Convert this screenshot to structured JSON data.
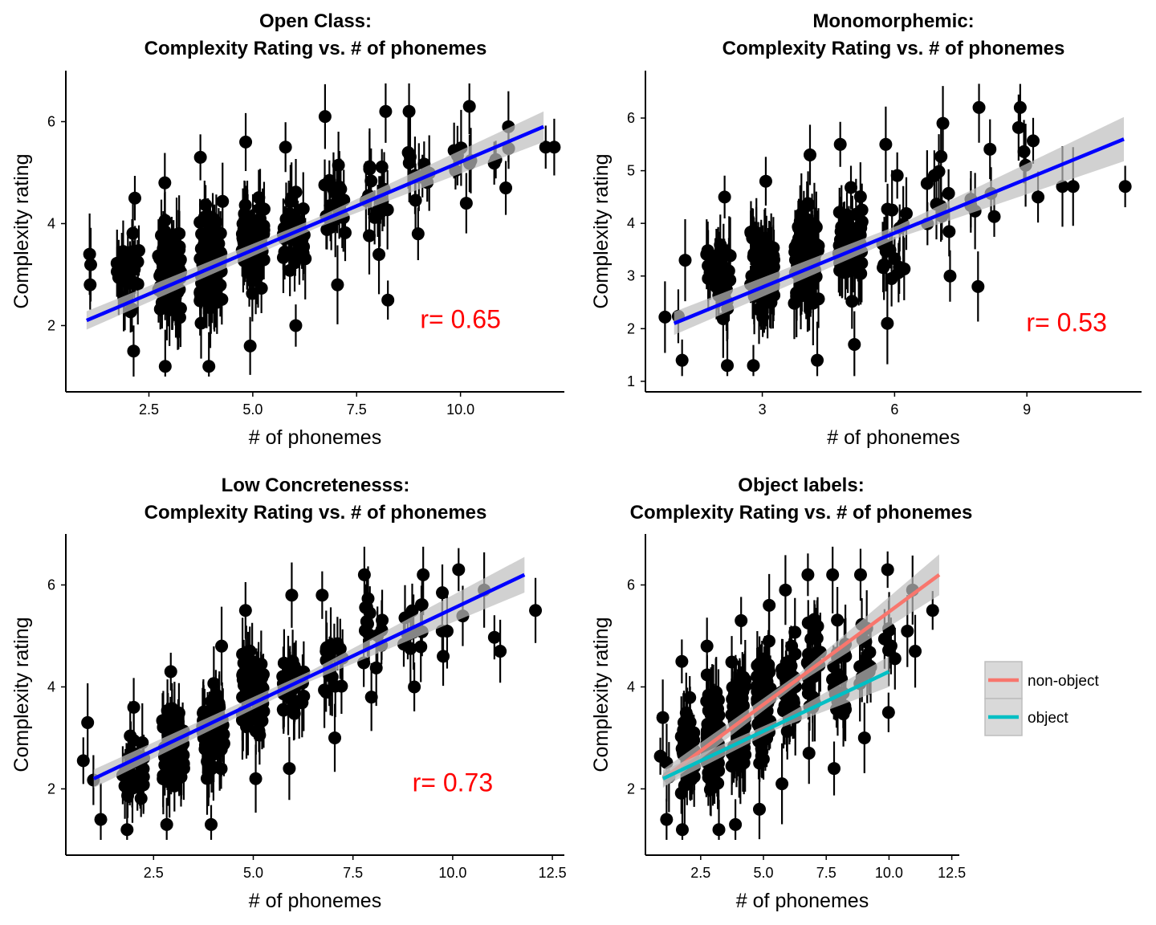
{
  "colors": {
    "points": "#000000",
    "fit": "#0000ff",
    "band": "#bdbdbd",
    "annotation": "#ff0000",
    "non_object": "#f8766d",
    "object": "#00bfc4"
  },
  "chart_data": [
    {
      "type": "scatter",
      "title_line1": "Open Class:",
      "title_line2": "Complexity Rating vs. # of phonemes",
      "xlabel": "# of phonemes",
      "ylabel": "Complexity rating",
      "xlim": [
        0.5,
        12.5
      ],
      "ylim": [
        0.7,
        7.0
      ],
      "xticks": [
        2.5,
        5.0,
        7.5,
        10.0
      ],
      "xtick_labels": [
        "2.5",
        "5.0",
        "7.5",
        "10.0"
      ],
      "yticks": [
        2,
        4,
        6
      ],
      "ytick_labels": [
        "2",
        "4",
        "6"
      ],
      "annotation": "r= 0.65",
      "annotation_pos": [
        10.0,
        1.95
      ],
      "points_x": [
        1,
        2,
        3,
        4,
        5,
        6,
        7,
        8,
        9,
        10,
        11,
        12
      ],
      "points_count": [
        3,
        30,
        90,
        95,
        75,
        35,
        22,
        18,
        12,
        8,
        5,
        2
      ],
      "points_ymin": [
        2.8,
        1.5,
        1.2,
        1.2,
        1.6,
        2.0,
        2.8,
        2.5,
        3.8,
        4.4,
        4.7,
        5.5
      ],
      "points_ymax": [
        3.4,
        4.5,
        4.8,
        5.3,
        5.6,
        5.5,
        6.1,
        6.2,
        6.2,
        6.3,
        5.9,
        5.5
      ],
      "fit_series": [
        {
          "x": [
            1,
            12
          ],
          "y": [
            2.1,
            5.9
          ],
          "band_halfwidth": [
            0.18,
            0.3
          ],
          "color": "#0000ff"
        }
      ]
    },
    {
      "type": "scatter",
      "title_line1": "Monomorphemic:",
      "title_line2": "Complexity Rating vs. # of phonemes",
      "xlabel": "# of phonemes",
      "ylabel": "Complexity rating",
      "xlim": [
        0.35,
        11.6
      ],
      "ylim": [
        0.8,
        6.9
      ],
      "xticks": [
        3,
        6,
        9
      ],
      "xtick_labels": [
        "3",
        "6",
        "9"
      ],
      "yticks": [
        1,
        2,
        3,
        4,
        5,
        6
      ],
      "ytick_labels": [
        "1",
        "2",
        "3",
        "4",
        "5",
        "6"
      ],
      "annotation": "r= 0.53",
      "annotation_pos": [
        9.9,
        1.95
      ],
      "points_x": [
        1,
        2,
        3,
        4,
        5,
        6,
        7,
        8,
        9,
        10,
        11
      ],
      "points_count": [
        4,
        35,
        90,
        80,
        55,
        20,
        12,
        8,
        6,
        2,
        1
      ],
      "points_ymin": [
        1.4,
        1.3,
        1.3,
        1.4,
        1.7,
        2.1,
        3.0,
        2.8,
        4.5,
        4.7,
        4.7
      ],
      "points_ymax": [
        3.3,
        4.5,
        4.8,
        5.3,
        5.5,
        5.5,
        5.9,
        6.2,
        6.2,
        4.7,
        4.7
      ],
      "fit_series": [
        {
          "x": [
            1,
            11.2
          ],
          "y": [
            2.1,
            5.6
          ],
          "band_halfwidth": [
            0.22,
            0.42
          ],
          "color": "#0000ff"
        }
      ]
    },
    {
      "type": "scatter",
      "title_line1": "Low Concretenesss:",
      "title_line2": "Complexity Rating vs. # of phonemes",
      "xlabel": "# of phonemes",
      "ylabel": "Complexity rating",
      "xlim": [
        0.3,
        12.8
      ],
      "ylim": [
        0.7,
        7.0
      ],
      "xticks": [
        2.5,
        5.0,
        7.5,
        10.0,
        12.5
      ],
      "xtick_labels": [
        "2.5",
        "5.0",
        "7.5",
        "10.0",
        "12.5"
      ],
      "yticks": [
        2,
        4,
        6
      ],
      "ytick_labels": [
        "2",
        "4",
        "6"
      ],
      "annotation": "r= 0.73",
      "annotation_pos": [
        10.0,
        1.95
      ],
      "points_x": [
        1,
        2,
        3,
        4,
        5,
        6,
        7,
        8,
        9,
        10,
        11,
        12
      ],
      "points_count": [
        4,
        30,
        70,
        75,
        60,
        30,
        20,
        16,
        12,
        6,
        3,
        1
      ],
      "points_ymin": [
        1.4,
        1.2,
        1.3,
        1.3,
        2.2,
        2.4,
        3.0,
        3.8,
        4.0,
        4.6,
        4.7,
        5.5
      ],
      "points_ymax": [
        3.3,
        3.6,
        4.3,
        4.8,
        5.5,
        5.8,
        5.8,
        6.2,
        6.2,
        6.3,
        5.9,
        5.5
      ],
      "fit_series": [
        {
          "x": [
            1,
            11.8
          ],
          "y": [
            2.2,
            6.2
          ],
          "band_halfwidth": [
            0.18,
            0.35
          ],
          "color": "#0000ff"
        }
      ]
    },
    {
      "type": "scatter",
      "title_line1": "Object labels:",
      "title_line2": "Complexity Rating vs. # of phonemes",
      "xlabel": "# of phonemes",
      "ylabel": "Complexity rating",
      "xlim": [
        0.3,
        12.8
      ],
      "ylim": [
        0.7,
        7.0
      ],
      "xticks": [
        2.5,
        5.0,
        7.5,
        10.0,
        12.5
      ],
      "xtick_labels": [
        "2.5",
        "5.0",
        "7.5",
        "10.0",
        "12.5"
      ],
      "yticks": [
        2,
        4,
        6
      ],
      "ytick_labels": [
        "2",
        "4",
        "6"
      ],
      "annotation": "",
      "points_x": [
        1,
        2,
        3,
        4,
        5,
        6,
        7,
        8,
        9,
        10,
        11,
        12
      ],
      "points_count": [
        5,
        45,
        110,
        110,
        90,
        45,
        30,
        22,
        15,
        8,
        3,
        1
      ],
      "points_ymin": [
        1.4,
        1.2,
        1.2,
        1.3,
        1.6,
        2.1,
        2.7,
        2.4,
        3.0,
        3.5,
        4.7,
        5.5
      ],
      "points_ymax": [
        3.4,
        4.5,
        4.8,
        5.3,
        5.6,
        5.9,
        6.2,
        6.2,
        6.2,
        6.3,
        5.9,
        5.5
      ],
      "fit_series": [
        {
          "name": "non-object",
          "x": [
            1,
            12
          ],
          "y": [
            2.2,
            6.2
          ],
          "band_halfwidth": [
            0.18,
            0.4
          ],
          "color": "#f8766d"
        },
        {
          "name": "object",
          "x": [
            1,
            10
          ],
          "y": [
            2.2,
            4.3
          ],
          "band_halfwidth": [
            0.16,
            0.3
          ],
          "color": "#00bfc4"
        }
      ],
      "legend": {
        "position": "right",
        "entries": [
          "non-object",
          "object"
        ]
      }
    }
  ]
}
